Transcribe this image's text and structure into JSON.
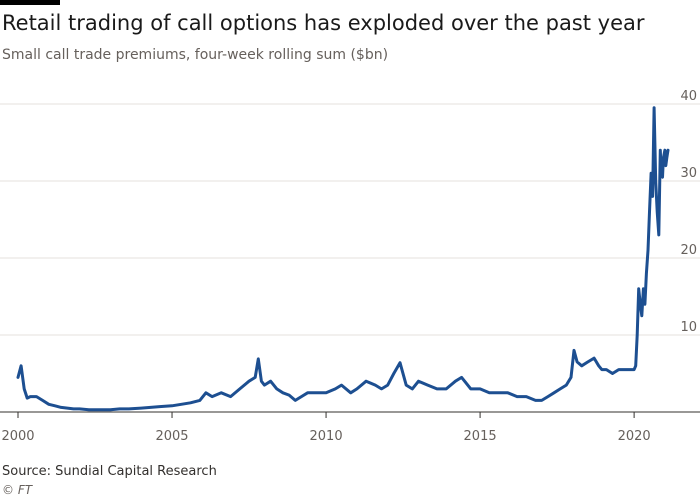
{
  "header": {
    "title": "Retail trading of call options has exploded over the past year",
    "subtitle": "Small call trade premiums, four-week rolling sum ($bn)"
  },
  "footer": {
    "source": "Source: Sundial Capital Research",
    "copyright": "© FT"
  },
  "colors": {
    "line": "#1d4f91",
    "grid": "#e6e1dc",
    "axis": "#33302e",
    "text": "#66605c"
  },
  "chart_data": {
    "type": "line",
    "title": "Retail trading of call options has exploded over the past year",
    "subtitle": "Small call trade premiums, four-week rolling sum ($bn)",
    "xlabel": "",
    "ylabel": "$bn",
    "xlim": [
      2000,
      2021.1
    ],
    "ylim": [
      0,
      40
    ],
    "grid": true,
    "legend": "none",
    "x_ticks": [
      2000,
      2005,
      2010,
      2015,
      2020
    ],
    "x_tick_labels": [
      "2000",
      "2005",
      "2010",
      "2015",
      "2020"
    ],
    "y_ticks": [
      10,
      20,
      30,
      40
    ],
    "y_tick_labels": [
      "10",
      "20",
      "30",
      "40"
    ],
    "series": [
      {
        "name": "Small call trade premiums",
        "x": [
          2000.0,
          2000.1,
          2000.2,
          2000.3,
          2000.4,
          2000.6,
          2000.8,
          2001.0,
          2001.2,
          2001.4,
          2001.6,
          2001.8,
          2002.0,
          2002.3,
          2002.6,
          2003.0,
          2003.3,
          2003.6,
          2004.0,
          2004.3,
          2004.6,
          2005.0,
          2005.3,
          2005.6,
          2005.9,
          2006.1,
          2006.3,
          2006.6,
          2006.9,
          2007.2,
          2007.5,
          2007.7,
          2007.8,
          2007.9,
          2008.0,
          2008.2,
          2008.4,
          2008.6,
          2008.8,
          2009.0,
          2009.2,
          2009.4,
          2009.7,
          2010.0,
          2010.3,
          2010.5,
          2010.8,
          2011.0,
          2011.3,
          2011.6,
          2011.8,
          2012.0,
          2012.2,
          2012.4,
          2012.6,
          2012.8,
          2013.0,
          2013.3,
          2013.6,
          2013.9,
          2014.2,
          2014.4,
          2014.7,
          2015.0,
          2015.3,
          2015.6,
          2015.9,
          2016.2,
          2016.5,
          2016.8,
          2017.0,
          2017.2,
          2017.4,
          2017.6,
          2017.8,
          2017.95,
          2018.05,
          2018.15,
          2018.3,
          2018.5,
          2018.7,
          2018.85,
          2018.95,
          2019.1,
          2019.3,
          2019.5,
          2019.7,
          2019.9,
          2020.0,
          2020.05,
          2020.1,
          2020.15,
          2020.2,
          2020.25,
          2020.3,
          2020.35,
          2020.4,
          2020.45,
          2020.5,
          2020.55,
          2020.6,
          2020.65,
          2020.7,
          2020.75,
          2020.8,
          2020.85,
          2020.88,
          2020.92,
          2020.95,
          2021.0,
          2021.03,
          2021.06,
          2021.1
        ],
        "values": [
          4.5,
          6.0,
          3.0,
          1.8,
          2.0,
          2.0,
          1.5,
          1.0,
          0.8,
          0.6,
          0.5,
          0.4,
          0.4,
          0.3,
          0.3,
          0.3,
          0.4,
          0.4,
          0.5,
          0.6,
          0.7,
          0.8,
          1.0,
          1.2,
          1.5,
          2.5,
          2.0,
          2.5,
          2.0,
          3.0,
          4.0,
          4.5,
          6.9,
          4.0,
          3.5,
          4.0,
          3.0,
          2.5,
          2.2,
          1.5,
          2.0,
          2.5,
          2.5,
          2.5,
          3.0,
          3.5,
          2.5,
          3.0,
          4.0,
          3.5,
          3.0,
          3.5,
          5.0,
          6.4,
          3.5,
          3.0,
          4.0,
          3.5,
          3.0,
          3.0,
          4.0,
          4.5,
          3.0,
          3.0,
          2.5,
          2.5,
          2.5,
          2.0,
          2.0,
          1.5,
          1.5,
          2.0,
          2.5,
          3.0,
          3.5,
          4.5,
          8.0,
          6.5,
          6.0,
          6.5,
          7.0,
          6.0,
          5.5,
          5.5,
          5.0,
          5.5,
          5.5,
          5.5,
          5.5,
          6.0,
          10.0,
          16.0,
          14.0,
          12.5,
          16.0,
          14.0,
          18.0,
          21.0,
          26.0,
          31.0,
          28.0,
          39.5,
          30.0,
          26.0,
          23.0,
          34.0,
          31.0,
          30.5,
          33.0,
          34.0,
          32.0,
          33.0,
          34.0
        ]
      }
    ]
  }
}
